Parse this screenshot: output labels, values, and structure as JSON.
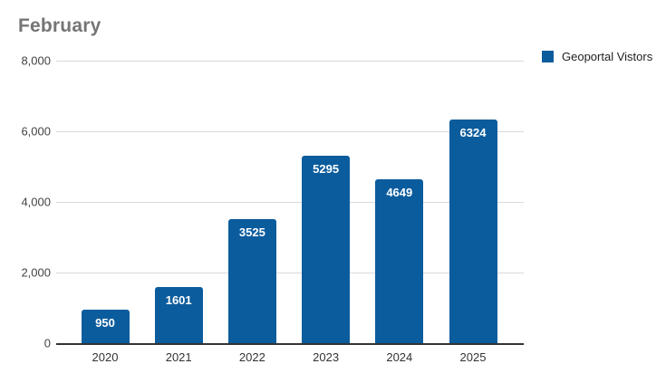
{
  "title": "February",
  "legend": {
    "label": "Geoportal Vistors",
    "swatch_color": "#0b5c9d"
  },
  "colors": {
    "bar": "#0b5c9d",
    "title_text": "#757575",
    "gridline": "#d9d9d9",
    "axis_line": "#333333",
    "tick_text": "#444444",
    "value_label_text": "#ffffff",
    "background": "#ffffff"
  },
  "chart_data": {
    "type": "bar",
    "title": "February",
    "categories": [
      "2020",
      "2021",
      "2022",
      "2023",
      "2024",
      "2025"
    ],
    "series": [
      {
        "name": "Geoportal Vistors",
        "values": [
          950,
          1601,
          3525,
          5295,
          4649,
          6324
        ],
        "color": "#0b5c9d"
      }
    ],
    "data_labels": [
      "950",
      "1601",
      "3525",
      "5295",
      "4649",
      "6324"
    ],
    "xlabel": "",
    "ylabel": "",
    "ylim": [
      0,
      8000
    ],
    "yticks": [
      {
        "value": 0,
        "label": "0"
      },
      {
        "value": 2000,
        "label": "2,000"
      },
      {
        "value": 4000,
        "label": "4,000"
      },
      {
        "value": 6000,
        "label": "6,000"
      },
      {
        "value": 8000,
        "label": "8,000"
      }
    ],
    "grid": true,
    "legend_position": "top-right"
  }
}
